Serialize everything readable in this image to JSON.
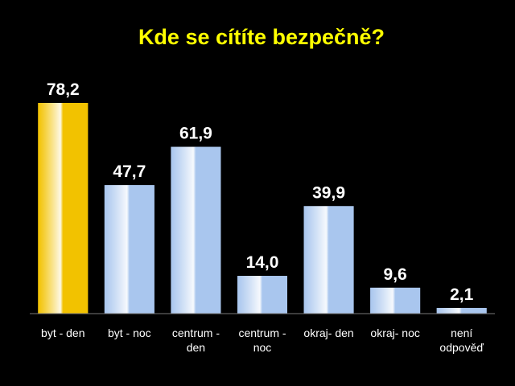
{
  "chart_data": {
    "type": "bar",
    "title": "Kde se cítíte bezpečně?",
    "categories": [
      "byt - den",
      "byt - noc",
      "centrum - den",
      "centrum - noc",
      "okraj- den",
      "okraj- noc",
      "není odpověď"
    ],
    "values": [
      78.2,
      47.7,
      61.9,
      14.0,
      39.9,
      9.6,
      2.1
    ],
    "value_labels": [
      "78,2",
      "47,7",
      "61,9",
      "14,0",
      "39,9",
      "9,6",
      "2,1"
    ],
    "colors": [
      "#f2c200",
      "#a9c6ee",
      "#a9c6ee",
      "#a9c6ee",
      "#a9c6ee",
      "#a9c6ee",
      "#a9c6ee"
    ]
  }
}
